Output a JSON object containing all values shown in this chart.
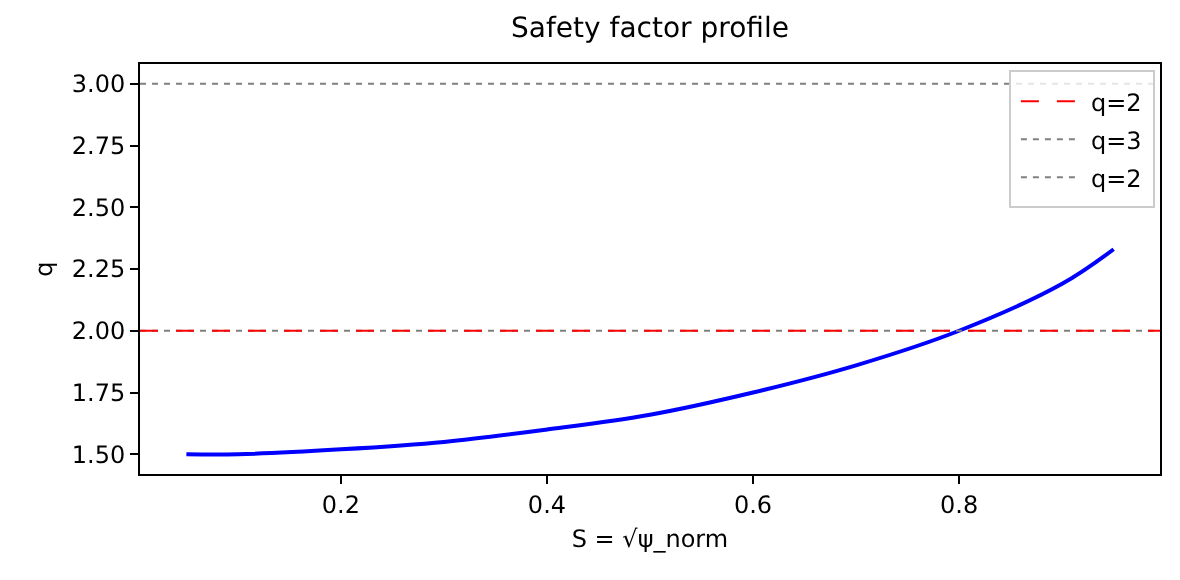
{
  "chart_data": {
    "type": "line",
    "title": "Safety factor profile",
    "xlabel": "S = √ψ_norm",
    "ylabel": "q",
    "x": [
      0.05,
      0.1,
      0.2,
      0.3,
      0.4,
      0.5,
      0.6,
      0.7,
      0.8,
      0.9,
      0.95
    ],
    "series": [
      {
        "color": "#0000ff",
        "values": [
          1.5,
          1.5,
          1.52,
          1.55,
          1.6,
          1.66,
          1.75,
          1.86,
          2.0,
          2.19,
          2.33
        ]
      }
    ],
    "xlim": [
      0.005,
      0.995
    ],
    "xticks": [
      0.2,
      0.4,
      0.6,
      0.8
    ],
    "ylim": [
      1.42,
      3.08
    ],
    "yticks": [
      {
        "value": 1.5,
        "label": "1.50"
      },
      {
        "value": 1.75,
        "label": "1.75"
      },
      {
        "value": 2.0,
        "label": "2.00"
      },
      {
        "value": 2.25,
        "label": "2.25"
      },
      {
        "value": 2.5,
        "label": "2.50"
      },
      {
        "value": 2.75,
        "label": "2.75"
      },
      {
        "value": 3.0,
        "label": "3.00"
      }
    ],
    "ref_lines": [
      {
        "axis": "y",
        "value": 2,
        "label": "q=2",
        "color": "#ff0000",
        "line_style": "dashed"
      },
      {
        "axis": "y",
        "value": 3,
        "label": "q=3",
        "color": "#808080",
        "line_style": "dotted"
      },
      {
        "axis": "y",
        "value": 2,
        "label": "q=2",
        "color": "#808080",
        "line_style": "dotted"
      }
    ],
    "legend": "top right",
    "marker": "none",
    "line_style": "solid"
  }
}
